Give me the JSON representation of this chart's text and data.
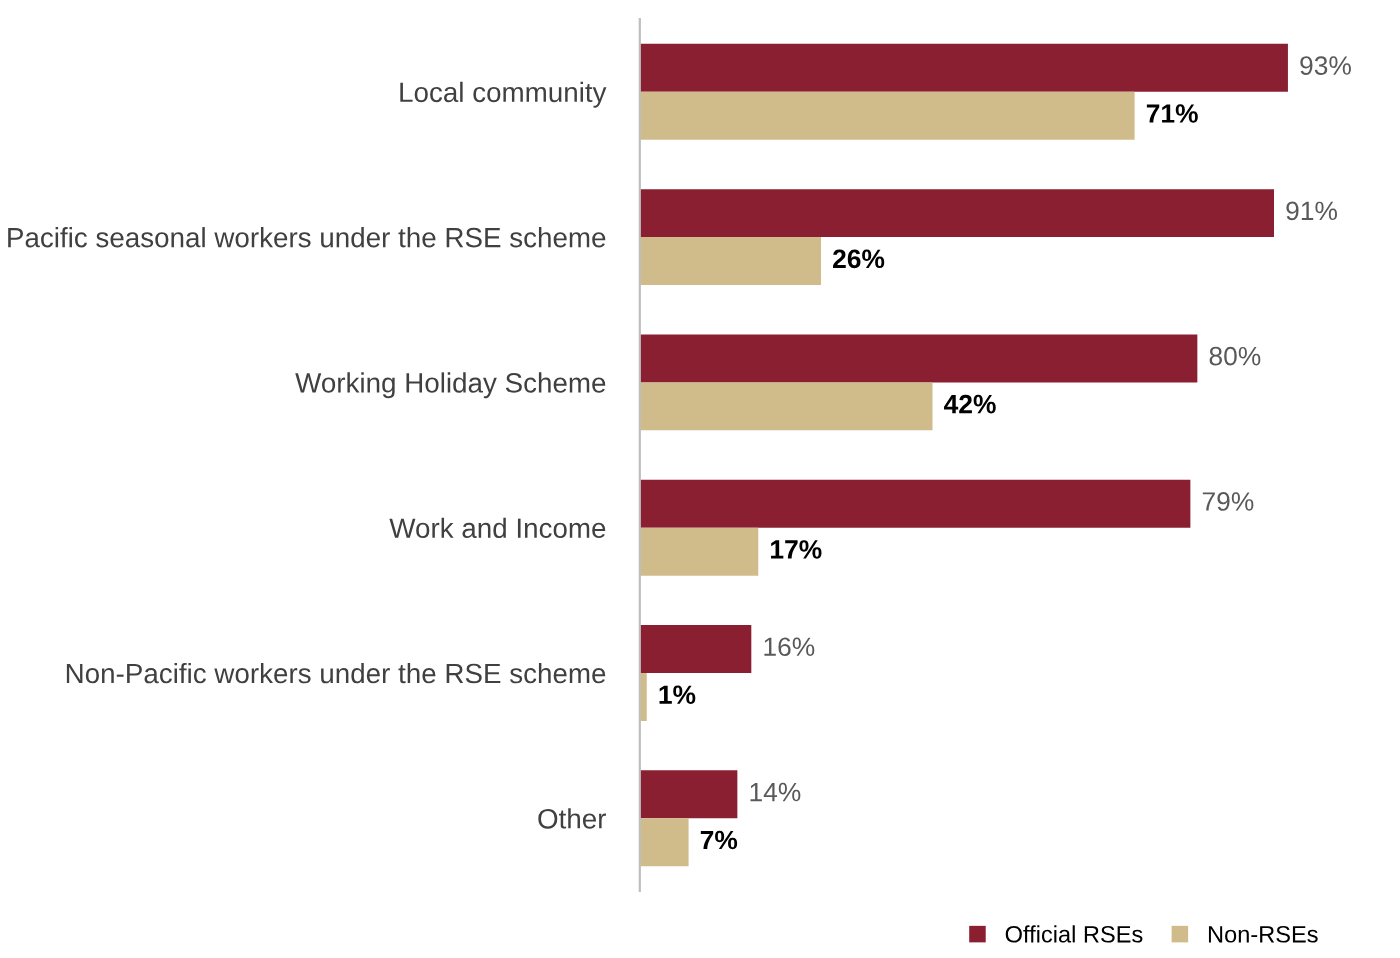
{
  "chart_data": {
    "type": "bar",
    "orientation": "horizontal",
    "categories": [
      "Local community",
      "Pacific seasonal workers under the RSE scheme",
      "Working Holiday Scheme",
      "Work and Income",
      "Non-Pacific workers under the RSE scheme",
      "Other"
    ],
    "series": [
      {
        "name": "Official RSEs",
        "color": "#8b1f32",
        "values": [
          93,
          91,
          80,
          79,
          16,
          14
        ],
        "value_labels": [
          "93%",
          "91%",
          "80%",
          "79%",
          "16%",
          "14%"
        ]
      },
      {
        "name": "Non-RSEs",
        "color": "#cfbc8a",
        "values": [
          71,
          26,
          42,
          17,
          1,
          7
        ],
        "value_labels": [
          "71%",
          "26%",
          "42%",
          "17%",
          "1%",
          "7%"
        ]
      }
    ],
    "legend": "bottom right",
    "grid": false
  }
}
